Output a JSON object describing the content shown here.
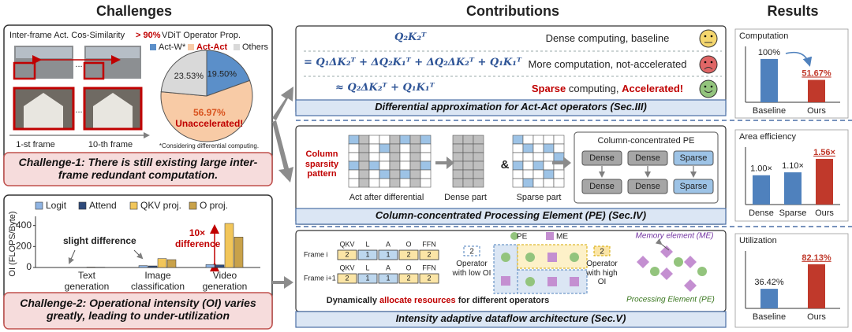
{
  "headers": {
    "challenges": "Challenges",
    "contributions": "Contributions",
    "results": "Results"
  },
  "challenge1": {
    "similarity_label": "Inter-frame Act. Cos-Similarity",
    "similarity_value": "> 90%",
    "ellipsis": "...",
    "frame_labels": [
      "1-st frame",
      "10-th frame"
    ],
    "footnote": "*Considering differential computing.",
    "caption": "Challenge-1: There is still existing large inter-frame redundant computation."
  },
  "challenge2": {
    "caption": "Challenge-2: Operational intensity (OI) varies greatly, leading to under-utilization"
  },
  "contribution1": {
    "rows": [
      {
        "equation": "Q₂K₂ᵀ",
        "description": "Dense computing, baseline"
      },
      {
        "equation": "= Q₁ΔK₂ᵀ + ΔQ₂K₁ᵀ + ΔQ₂ΔK₂ᵀ + Q₁K₁ᵀ",
        "description": "More computation, not-accelerated"
      },
      {
        "equation": "≈ Q₂ΔK₂ᵀ + Q₁K₁ᵀ",
        "description_parts": [
          "Sparse",
          "computing,",
          "Accelerated!"
        ]
      }
    ],
    "caption": "Differential approximation for Act-Act operators (Sec.III)"
  },
  "contribution2": {
    "pattern_label": "Column sparsity pattern",
    "matrix_labels": [
      "Act after differential",
      "Dense part",
      "Sparse part"
    ],
    "ampersand": "&",
    "pe_title": "Column-concentrated PE",
    "pe_blocks": [
      [
        "Dense",
        "Dense",
        "Sparse"
      ],
      [
        "Dense",
        "Dense",
        "Sparse"
      ]
    ],
    "caption": "Column-concentrated Processing Element (PE) (Sec.IV)"
  },
  "contribution3": {
    "operators": [
      "QKV",
      "L",
      "A",
      "O",
      "FFN"
    ],
    "frames": [
      {
        "label": "Frame i",
        "cells": [
          "2",
          "1",
          "1",
          "2",
          "2"
        ]
      },
      {
        "label": "Frame i+1",
        "cells": [
          "2",
          "1",
          "1",
          "2",
          "2"
        ]
      }
    ],
    "low_oi": {
      "cell": "2",
      "label": "Operator with low OI"
    },
    "high_oi": {
      "cell": "2",
      "label": "Operator with high OI"
    },
    "legend": [
      "PE",
      "ME"
    ],
    "me_label": "Memory element (ME)",
    "pe_label": "Processing Element (PE)",
    "allocate_parts": [
      "Dynamically",
      "allocate resources",
      "for different operators"
    ],
    "caption": "Intensity adaptive dataflow architecture (Sec.V)"
  },
  "chart_data": [
    {
      "type": "pie",
      "title": "VDiT Operator Prop.",
      "categories": [
        "Act-W*",
        "Act-Act",
        "Others"
      ],
      "values": [
        19.5,
        56.97,
        23.53
      ],
      "value_labels": [
        "19.50%",
        "56.97%",
        "23.53%"
      ],
      "colors": [
        "#5b8fc9",
        "#f8cba6",
        "#d9d9d9"
      ],
      "annotation": "Unaccelerated!"
    },
    {
      "type": "bar",
      "ylabel": "OI (FLOPS/Byte)",
      "categories": [
        "Text generation",
        "Image classification",
        "Video generation"
      ],
      "series": [
        {
          "name": "Logit",
          "color": "#8fb4e3",
          "values": [
            2,
            18,
            28
          ]
        },
        {
          "name": "Attend",
          "color": "#2e4a7a",
          "values": [
            2,
            15,
            25
          ]
        },
        {
          "name": "QKV proj.",
          "color": "#f2c65a",
          "values": [
            4,
            85,
            420
          ]
        },
        {
          "name": "O proj.",
          "color": "#c9a24a",
          "values": [
            3,
            75,
            290
          ]
        }
      ],
      "ylim": [
        0,
        450
      ],
      "yticks": [
        0,
        200,
        400
      ],
      "annotations": [
        "slight difference",
        "10× difference"
      ]
    },
    {
      "type": "bar",
      "title": "Computation",
      "categories": [
        "Baseline",
        "Ours"
      ],
      "values": [
        100,
        51.67
      ],
      "value_labels": [
        "100%",
        "51.67%"
      ],
      "colors": [
        "#4f81bd",
        "#c0392b"
      ],
      "ylim": [
        0,
        118
      ]
    },
    {
      "type": "bar",
      "title": "Area efficiency",
      "categories": [
        "Dense",
        "Sparse",
        "Ours"
      ],
      "values": [
        1.0,
        1.1,
        1.56
      ],
      "value_labels": [
        "1.00×",
        "1.10×",
        "1.56×"
      ],
      "colors": [
        "#4f81bd",
        "#4f81bd",
        "#c0392b"
      ],
      "ylim": [
        0,
        1.8
      ]
    },
    {
      "type": "bar",
      "title": "Utilization",
      "categories": [
        "Baseline",
        "Ours"
      ],
      "values": [
        36.42,
        82.13
      ],
      "value_labels": [
        "36.42%",
        "82.13%"
      ],
      "colors": [
        "#4f81bd",
        "#c0392b"
      ],
      "ylim": [
        0,
        98
      ]
    }
  ]
}
